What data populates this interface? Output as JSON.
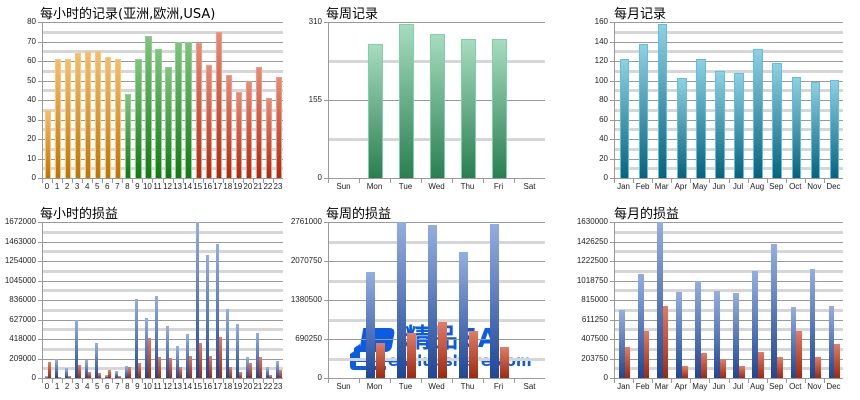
{
  "chart_data": [
    {
      "id": "hourly-records",
      "type": "bar",
      "title": "每小时的记录(亚洲,欧洲,USA)",
      "xlabel": "",
      "ylabel": "",
      "categories": [
        "0",
        "1",
        "2",
        "3",
        "4",
        "5",
        "6",
        "7",
        "8",
        "9",
        "10",
        "11",
        "12",
        "13",
        "14",
        "15",
        "16",
        "17",
        "18",
        "19",
        "20",
        "21",
        "22",
        "23"
      ],
      "values": [
        35,
        61,
        61,
        64,
        65,
        65,
        62,
        61,
        43,
        61,
        73,
        66,
        57,
        70,
        70,
        69,
        58,
        75,
        53,
        44,
        50,
        57,
        41,
        52
      ],
      "bar_groups": [
        {
          "name": "亚洲",
          "range": [
            0,
            7
          ],
          "color_top": "#f5bd6a",
          "color_bottom": "#c27400",
          "border": "#f7c77e"
        },
        {
          "name": "欧洲",
          "range": [
            8,
            14
          ],
          "color_top": "#7fc47f",
          "color_bottom": "#137a13",
          "border": "#8fd08f"
        },
        {
          "name": "USA",
          "range": [
            15,
            23
          ],
          "color_top": "#e88a74",
          "color_bottom": "#a82d12",
          "border": "#ee9d8a"
        }
      ],
      "yticks": [
        "0",
        "10",
        "20",
        "30",
        "40",
        "50",
        "60",
        "70",
        "80"
      ],
      "ylim": [
        0,
        80
      ],
      "grid": true
    },
    {
      "id": "weekly-records",
      "type": "bar",
      "title": "每周记录",
      "categories": [
        "Sun",
        "Mon",
        "Tue",
        "Wed",
        "Thu",
        "Fri",
        "Sat"
      ],
      "values": [
        0,
        267,
        306,
        286,
        277,
        276,
        0
      ],
      "yticks": [
        "0",
        "155",
        "310"
      ],
      "ylim": [
        0,
        310
      ],
      "color_top": "#a6dcc0",
      "color_bottom": "#2a7f52",
      "border": "#7fd0a8",
      "grid": true
    },
    {
      "id": "monthly-records",
      "type": "bar",
      "title": "每月记录",
      "categories": [
        "Jan",
        "Feb",
        "Mar",
        "Apr",
        "May",
        "Jun",
        "Jul",
        "Aug",
        "Sep",
        "Oct",
        "Nov",
        "Dec"
      ],
      "values": [
        122,
        137,
        158,
        103,
        122,
        110,
        108,
        132,
        118,
        104,
        98,
        101
      ],
      "yticks": [
        "0",
        "20",
        "40",
        "60",
        "80",
        "100",
        "120",
        "140",
        "160"
      ],
      "ylim": [
        0,
        160
      ],
      "color_top": "#8fd0e2",
      "color_bottom": "#07637e",
      "border": "#5bc1dc",
      "grid": true
    },
    {
      "id": "hourly-profit",
      "type": "bar",
      "title": "每小时的损益",
      "categories": [
        "0",
        "1",
        "2",
        "3",
        "4",
        "5",
        "6",
        "7",
        "8",
        "9",
        "10",
        "11",
        "12",
        "13",
        "14",
        "15",
        "16",
        "17",
        "18",
        "19",
        "20",
        "21",
        "22",
        "23"
      ],
      "series": [
        {
          "name": "blue",
          "color_top": "#93ade0",
          "color_bottom": "#1f4797",
          "values": [
            20000,
            204000,
            104000,
            622000,
            196000,
            375000,
            28000,
            78000,
            132000,
            846000,
            643000,
            879000,
            558000,
            340000,
            475000,
            1672000,
            1318000,
            1436000,
            740000,
            579000,
            225000,
            486000,
            118000,
            185000
          ]
        },
        {
          "name": "red",
          "color_top": "#e07a60",
          "color_bottom": "#9c2a10",
          "values": [
            171000,
            5000,
            20000,
            140000,
            65000,
            50000,
            86000,
            22000,
            121000,
            161000,
            432000,
            225000,
            214000,
            121000,
            236000,
            378000,
            236000,
            439000,
            118000,
            64000,
            164000,
            225000,
            28000,
            86000
          ]
        }
      ],
      "yticks": [
        "0",
        "209000",
        "418000",
        "627000",
        "836000",
        "1045000",
        "1254000",
        "1463000",
        "1672000"
      ],
      "ylim": [
        0,
        1672000
      ],
      "grid": true
    },
    {
      "id": "weekly-profit",
      "type": "bar",
      "title": "每周的损益",
      "categories": [
        "Sun",
        "Mon",
        "Tue",
        "Wed",
        "Thu",
        "Fri",
        "Sat"
      ],
      "series": [
        {
          "name": "blue",
          "color_top": "#93ade0",
          "color_bottom": "#1f4797",
          "values": [
            0,
            1874000,
            2761000,
            2700000,
            2228000,
            2725000,
            0
          ]
        },
        {
          "name": "red",
          "color_top": "#e07a60",
          "color_bottom": "#9c2a10",
          "values": [
            0,
            620000,
            798000,
            993000,
            839000,
            550000,
            0
          ]
        }
      ],
      "yticks": [
        "0",
        "690250",
        "1380500",
        "2070750",
        "2761000"
      ],
      "ylim": [
        0,
        2761000
      ],
      "grid": true
    },
    {
      "id": "monthly-profit",
      "type": "bar",
      "title": "每月的损益",
      "categories": [
        "Jan",
        "Feb",
        "Mar",
        "Apr",
        "May",
        "Jun",
        "Jul",
        "Aug",
        "Sep",
        "Oct",
        "Nov",
        "Dec"
      ],
      "series": [
        {
          "name": "blue",
          "color_top": "#93ade0",
          "color_bottom": "#1f4797",
          "values": [
            714000,
            1083000,
            1630000,
            895000,
            1017000,
            912000,
            885000,
            1118000,
            1400000,
            742000,
            1142000,
            755000
          ]
        },
        {
          "name": "red",
          "color_top": "#e07a60",
          "color_bottom": "#9c2a10",
          "values": [
            320000,
            491000,
            752000,
            122000,
            264000,
            202000,
            122000,
            272000,
            219000,
            488000,
            215000,
            355000
          ]
        }
      ],
      "yticks": [
        "0",
        "203750",
        "407500",
        "611250",
        "815000",
        "1018750",
        "1222500",
        "1426250",
        "1630000"
      ],
      "ylim": [
        0,
        1630000
      ],
      "grid": true
    }
  ],
  "watermark": {
    "title": "精品EA",
    "url": "eaclubshare.com",
    "color": "#0a5ce6"
  }
}
